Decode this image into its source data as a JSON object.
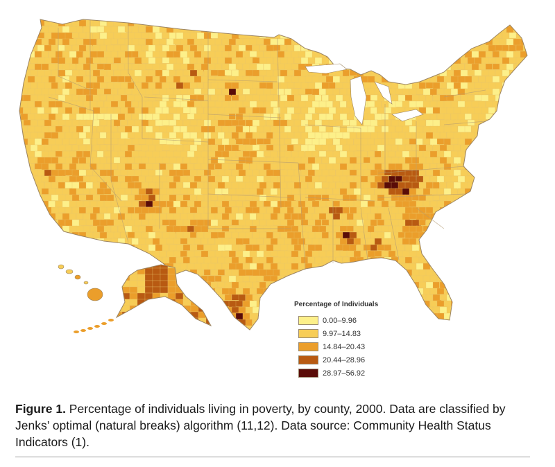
{
  "map": {
    "subject": "Percentage of individuals living in poverty, by county, 2000",
    "legend": {
      "title": "Percentage of Individuals",
      "classes": [
        {
          "label": "0.00–9.96",
          "color": "#fdf08a"
        },
        {
          "label": "9.97–14.83",
          "color": "#f7cd57"
        },
        {
          "label": "14.84–20.43",
          "color": "#eb9e2b"
        },
        {
          "label": "20.44–28.96",
          "color": "#b85a12"
        },
        {
          "label": "28.97–56.92",
          "color": "#5a0c08"
        }
      ]
    }
  },
  "caption": {
    "figure_label": "Figure 1.",
    "text": " Percentage of individuals living in poverty, by county, 2000. Data are classified by Jenks’ optimal (natural breaks) algorithm (11,12). Data source: Community Health Status Indicators (1)."
  }
}
